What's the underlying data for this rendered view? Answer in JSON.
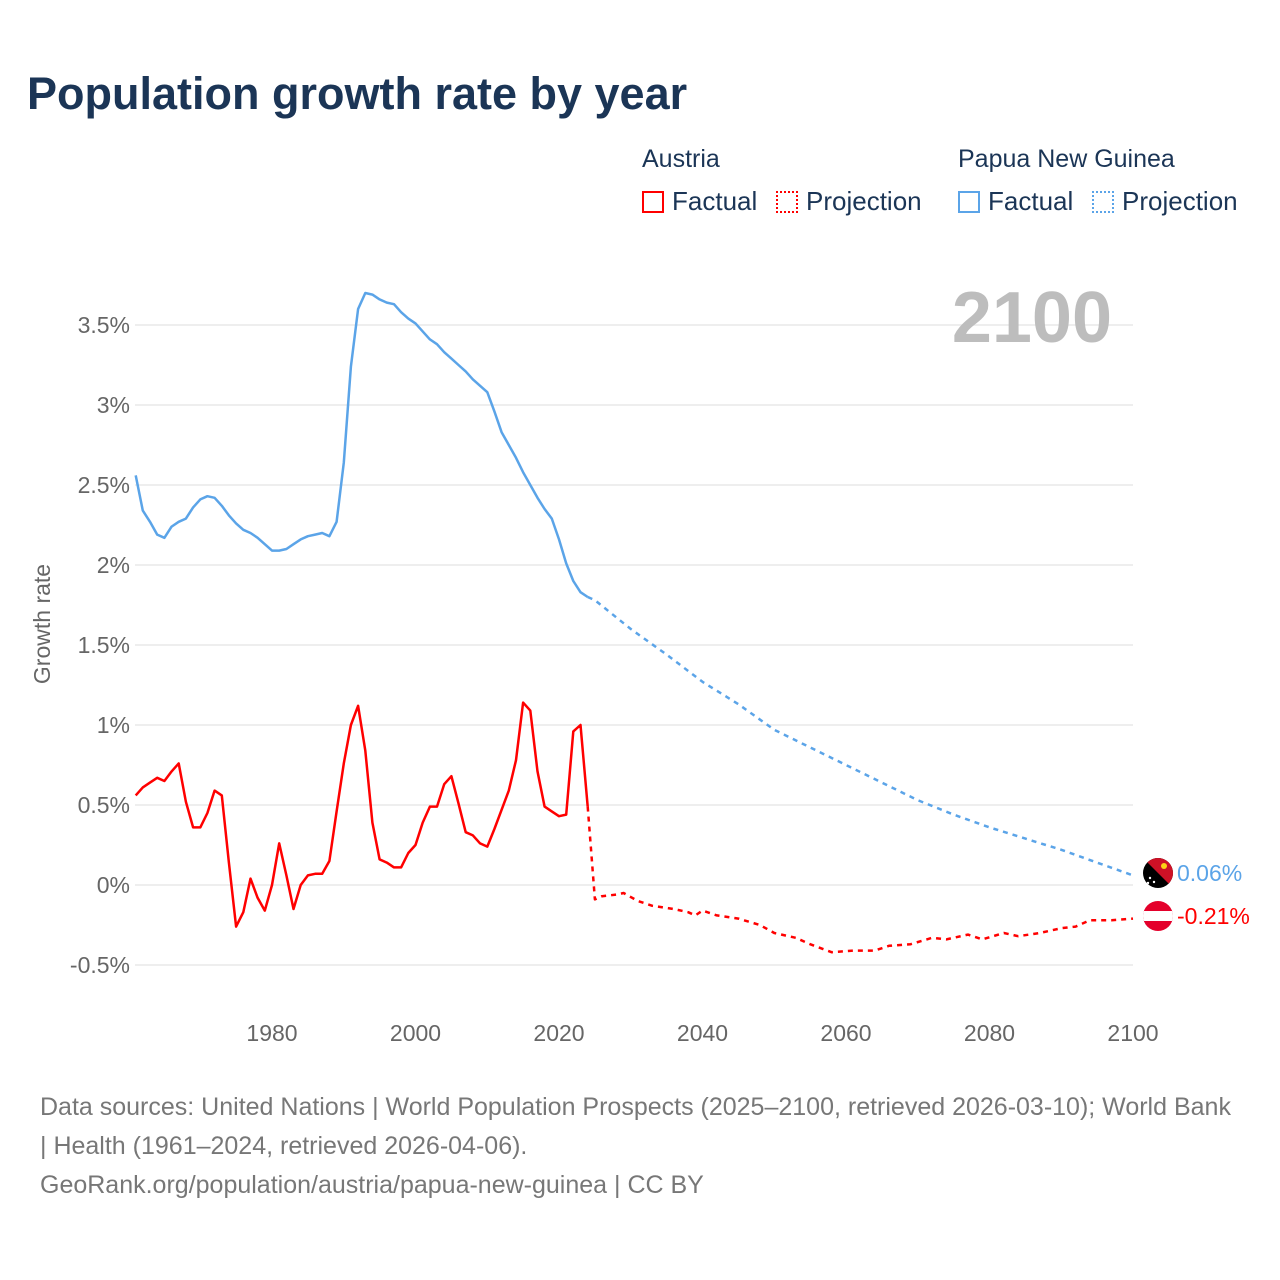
{
  "title": "Population growth rate by year",
  "legend": {
    "groups": [
      {
        "name": "Austria",
        "color": "#ff0000",
        "factual_label": "Factual",
        "projection_label": "Projection"
      },
      {
        "name": "Papua New Guinea",
        "color": "#5ba4e8",
        "factual_label": "Factual",
        "projection_label": "Projection"
      }
    ]
  },
  "year_badge": "2100",
  "end_labels": {
    "png": "0.06%",
    "austria": "-0.21%"
  },
  "footer": {
    "sources": "Data sources: United Nations | World Population Prospects (2025–2100, retrieved 2026-03-10); World Bank | Health (1961–2024, retrieved 2026-04-06).",
    "credit": "GeoRank.org/population/austria/papua-new-guinea | CC BY"
  },
  "chart_data": {
    "type": "line",
    "title": "Population growth rate by year",
    "xlabel": "",
    "ylabel": "Growth rate",
    "xlim": [
      1961,
      2100
    ],
    "ylim": [
      -0.6,
      3.75
    ],
    "x_ticks": [
      1980,
      2000,
      2020,
      2040,
      2060,
      2080,
      2100
    ],
    "x_tick_labels": [
      "1980",
      "2000",
      "2020",
      "2040",
      "2060",
      "2080",
      "2100"
    ],
    "y_ticks": [
      -0.5,
      0,
      0.5,
      1,
      1.5,
      2,
      2.5,
      3,
      3.5
    ],
    "y_tick_labels": [
      "-0.5%",
      "0%",
      "0.5%",
      "1%",
      "1.5%",
      "2%",
      "2.5%",
      "3%",
      "3.5%"
    ],
    "grid": true,
    "legend_position": "top-right",
    "series": [
      {
        "name": "Austria Factual",
        "color": "#ff0000",
        "style": "solid",
        "start_year": 1961,
        "values": [
          0.56,
          0.61,
          0.64,
          0.67,
          0.65,
          0.71,
          0.76,
          0.52,
          0.36,
          0.36,
          0.45,
          0.59,
          0.56,
          0.14,
          -0.26,
          -0.17,
          0.04,
          -0.08,
          -0.16,
          0.0,
          0.26,
          0.06,
          -0.15,
          0.0,
          0.06,
          0.07,
          0.07,
          0.15,
          0.46,
          0.76,
          1.0,
          1.12,
          0.84,
          0.39,
          0.16,
          0.14,
          0.11,
          0.11,
          0.2,
          0.25,
          0.39,
          0.49,
          0.49,
          0.63,
          0.68,
          0.51,
          0.33,
          0.31,
          0.26,
          0.24,
          0.35,
          0.47,
          0.59,
          0.78,
          1.14,
          1.09,
          0.71,
          0.49,
          0.46,
          0.43,
          0.44,
          0.96,
          1.0,
          0.49
        ]
      },
      {
        "name": "Austria Projection",
        "color": "#ff0000",
        "style": "dotted",
        "points": [
          [
            2024,
            0.49
          ],
          [
            2025,
            -0.09
          ],
          [
            2026,
            -0.07
          ],
          [
            2028,
            -0.06
          ],
          [
            2029,
            -0.05
          ],
          [
            2031,
            -0.1
          ],
          [
            2033,
            -0.13
          ],
          [
            2036,
            -0.15
          ],
          [
            2038,
            -0.17
          ],
          [
            2039,
            -0.19
          ],
          [
            2040,
            -0.16
          ],
          [
            2042,
            -0.19
          ],
          [
            2045,
            -0.21
          ],
          [
            2048,
            -0.25
          ],
          [
            2050,
            -0.3
          ],
          [
            2053,
            -0.33
          ],
          [
            2055,
            -0.37
          ],
          [
            2058,
            -0.42
          ],
          [
            2061,
            -0.41
          ],
          [
            2064,
            -0.41
          ],
          [
            2066,
            -0.38
          ],
          [
            2069,
            -0.37
          ],
          [
            2072,
            -0.33
          ],
          [
            2074,
            -0.34
          ],
          [
            2077,
            -0.31
          ],
          [
            2079,
            -0.34
          ],
          [
            2082,
            -0.3
          ],
          [
            2084,
            -0.32
          ],
          [
            2087,
            -0.3
          ],
          [
            2090,
            -0.27
          ],
          [
            2092,
            -0.26
          ],
          [
            2094,
            -0.22
          ],
          [
            2097,
            -0.22
          ],
          [
            2100,
            -0.21
          ]
        ]
      },
      {
        "name": "Papua New Guinea Factual",
        "color": "#5ba4e8",
        "style": "solid",
        "start_year": 1961,
        "values": [
          2.56,
          2.34,
          2.27,
          2.19,
          2.17,
          2.24,
          2.27,
          2.29,
          2.36,
          2.41,
          2.43,
          2.42,
          2.37,
          2.31,
          2.26,
          2.22,
          2.2,
          2.17,
          2.13,
          2.09,
          2.09,
          2.1,
          2.13,
          2.16,
          2.18,
          2.19,
          2.2,
          2.18,
          2.27,
          2.64,
          3.24,
          3.6,
          3.7,
          3.69,
          3.66,
          3.64,
          3.63,
          3.58,
          3.54,
          3.51,
          3.46,
          3.41,
          3.38,
          3.33,
          3.29,
          3.25,
          3.21,
          3.16,
          3.12,
          3.08,
          2.96,
          2.83,
          2.75,
          2.67,
          2.58,
          2.5,
          2.42,
          2.35,
          2.29,
          2.16,
          2.01,
          1.9,
          1.83,
          1.8
        ]
      },
      {
        "name": "Papua New Guinea Projection",
        "color": "#5ba4e8",
        "style": "dotted",
        "points": [
          [
            2024,
            1.8
          ],
          [
            2025,
            1.78
          ],
          [
            2030,
            1.6
          ],
          [
            2035,
            1.44
          ],
          [
            2040,
            1.27
          ],
          [
            2045,
            1.13
          ],
          [
            2050,
            0.97
          ],
          [
            2055,
            0.86
          ],
          [
            2060,
            0.75
          ],
          [
            2065,
            0.64
          ],
          [
            2070,
            0.53
          ],
          [
            2075,
            0.44
          ],
          [
            2080,
            0.36
          ],
          [
            2085,
            0.29
          ],
          [
            2090,
            0.22
          ],
          [
            2095,
            0.14
          ],
          [
            2100,
            0.06
          ]
        ]
      }
    ]
  }
}
